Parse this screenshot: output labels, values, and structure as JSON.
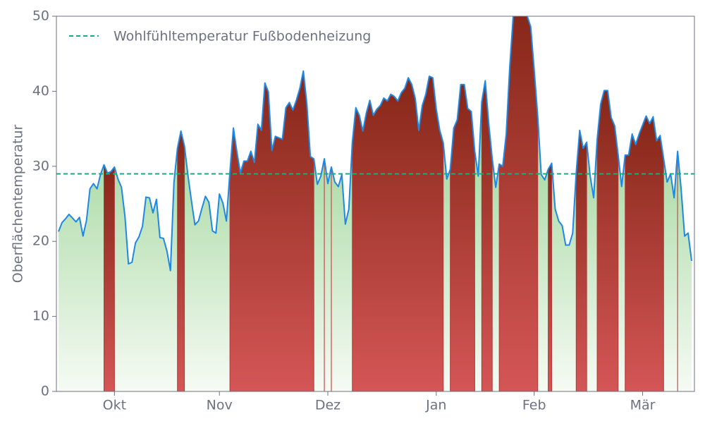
{
  "chart_data": {
    "type": "area-threshold",
    "y_label": "Oberflächentemperatur",
    "categories": [
      null,
      null,
      null,
      null,
      null,
      null,
      null,
      null,
      null,
      null,
      null,
      null,
      null,
      null,
      null,
      null,
      "Okt",
      null,
      null,
      null,
      null,
      null,
      null,
      null,
      null,
      null,
      null,
      null,
      null,
      null,
      null,
      null,
      null,
      null,
      null,
      null,
      null,
      null,
      null,
      null,
      null,
      null,
      null,
      null,
      null,
      null,
      "Nov",
      null,
      null,
      null,
      null,
      null,
      null,
      null,
      null,
      null,
      null,
      null,
      null,
      null,
      null,
      null,
      null,
      null,
      null,
      null,
      null,
      null,
      null,
      null,
      null,
      null,
      null,
      null,
      null,
      null,
      null,
      "Dez",
      null,
      null,
      null,
      null,
      null,
      null,
      null,
      null,
      null,
      null,
      null,
      null,
      null,
      null,
      null,
      null,
      null,
      null,
      null,
      null,
      null,
      null,
      null,
      null,
      null,
      null,
      null,
      null,
      null,
      null,
      "Jan",
      null,
      null,
      null,
      null,
      null,
      null,
      null,
      null,
      null,
      null,
      null,
      null,
      null,
      null,
      null,
      null,
      null,
      null,
      null,
      null,
      null,
      null,
      null,
      null,
      null,
      null,
      null,
      "Feb",
      null,
      null,
      null,
      null,
      null,
      null,
      null,
      null,
      null,
      null,
      null,
      null,
      null,
      null,
      null,
      null,
      null,
      null,
      null,
      null,
      null,
      null,
      null,
      null,
      null,
      null,
      null,
      null,
      null,
      null,
      "Mär",
      null,
      null,
      null,
      null,
      null,
      null,
      null,
      null,
      null,
      null,
      null,
      null,
      null,
      null
    ],
    "series": [
      {
        "name": "Oberflächentemperatur",
        "color": "#1e88e5",
        "values": [
          21.3,
          22.5,
          23.0,
          23.6,
          23.1,
          22.6,
          23.2,
          20.7,
          22.8,
          27.0,
          27.7,
          27.0,
          28.9,
          30.2,
          29.1,
          29.3,
          29.9,
          28.3,
          27.2,
          23.3,
          17.0,
          17.2,
          19.8,
          20.6,
          22.0,
          25.9,
          25.8,
          23.8,
          25.6,
          20.5,
          20.4,
          18.7,
          16.1,
          27.8,
          32.4,
          34.7,
          32.7,
          28.8,
          25.4,
          22.2,
          22.7,
          24.4,
          26.0,
          25.2,
          21.4,
          21.1,
          26.3,
          25.1,
          22.7,
          29.2,
          35.1,
          31.9,
          29.1,
          30.7,
          30.7,
          32.0,
          30.5,
          35.6,
          34.8,
          41.1,
          39.9,
          32.1,
          34.0,
          33.8,
          33.6,
          37.8,
          38.5,
          37.5,
          38.8,
          40.4,
          42.7,
          38.3,
          31.3,
          31.0,
          27.6,
          28.7,
          31.0,
          27.7,
          29.9,
          27.9,
          27.3,
          28.9,
          22.3,
          24.3,
          33.2,
          37.8,
          36.8,
          34.7,
          37.1,
          38.8,
          36.8,
          37.6,
          38.1,
          39.1,
          38.7,
          39.6,
          39.3,
          38.7,
          39.8,
          40.4,
          41.8,
          40.9,
          39.0,
          34.8,
          38.1,
          39.6,
          42.0,
          41.8,
          37.6,
          34.8,
          33.1,
          28.3,
          29.6,
          35.1,
          36.2,
          40.9,
          40.9,
          37.7,
          37.3,
          32.0,
          28.7,
          38.6,
          41.4,
          35.7,
          31.0,
          27.2,
          30.3,
          30.0,
          34.3,
          43.2,
          50.0,
          51.2,
          50.8,
          51.2,
          50.0,
          48.6,
          42.8,
          36.7,
          28.9,
          28.2,
          29.6,
          30.4,
          24.3,
          22.7,
          22.1,
          19.5,
          19.5,
          21.1,
          29.1,
          34.8,
          32.4,
          33.2,
          28.7,
          25.8,
          33.6,
          38.3,
          40.1,
          40.1,
          36.5,
          35.4,
          31.5,
          27.3,
          31.5,
          31.5,
          34.3,
          32.9,
          34.3,
          35.5,
          36.7,
          35.7,
          36.6,
          33.4,
          34.1,
          31.0,
          27.9,
          29.0,
          25.8,
          32.0,
          27.0,
          20.7,
          21.1,
          17.4
        ]
      }
    ],
    "threshold": {
      "name": "Wohlfühltemperatur Fußbodenheizung",
      "value": 29,
      "color": "#1aaa80"
    },
    "ylim": [
      0,
      50
    ],
    "yticks": [
      0,
      10,
      20,
      30,
      40,
      50
    ],
    "legend": "upper left"
  }
}
